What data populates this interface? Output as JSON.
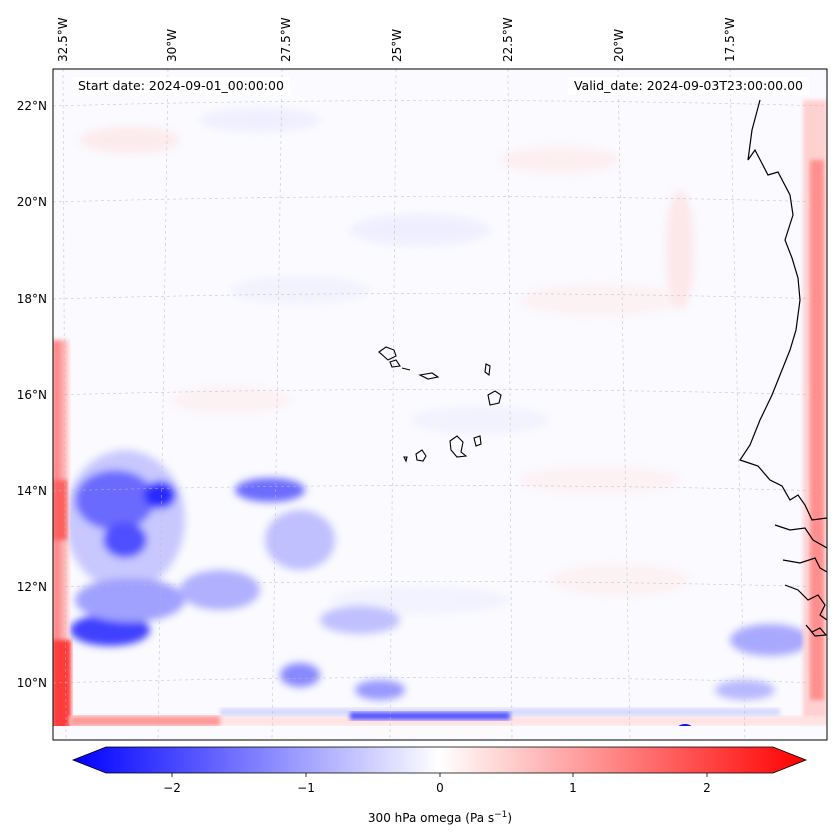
{
  "map": {
    "start_date": "Start date: 2024-09-01_00:00:00",
    "valid_date": "Valid_date: 2024-09-03T23:00:00.00",
    "lon_labels": [
      "32.5°W",
      "30°W",
      "27.5°W",
      "25°W",
      "22.5°W",
      "20°W",
      "17.5°W"
    ],
    "lat_labels": [
      "22°N",
      "20°N",
      "18°N",
      "16°N",
      "14°N",
      "12°N",
      "10°N"
    ],
    "field": "300 hPa omega",
    "colormap": [
      "#0000ff",
      "#ffffff",
      "#ff0000"
    ]
  },
  "colorbar": {
    "ticks": [
      "−2",
      "−1",
      "0",
      "1",
      "2"
    ],
    "label_prefix": "300 hPa omega (Pa s",
    "label_exp": "−1",
    "label_suffix": ")",
    "vmin": -2.6,
    "vmax": 2.6
  }
}
